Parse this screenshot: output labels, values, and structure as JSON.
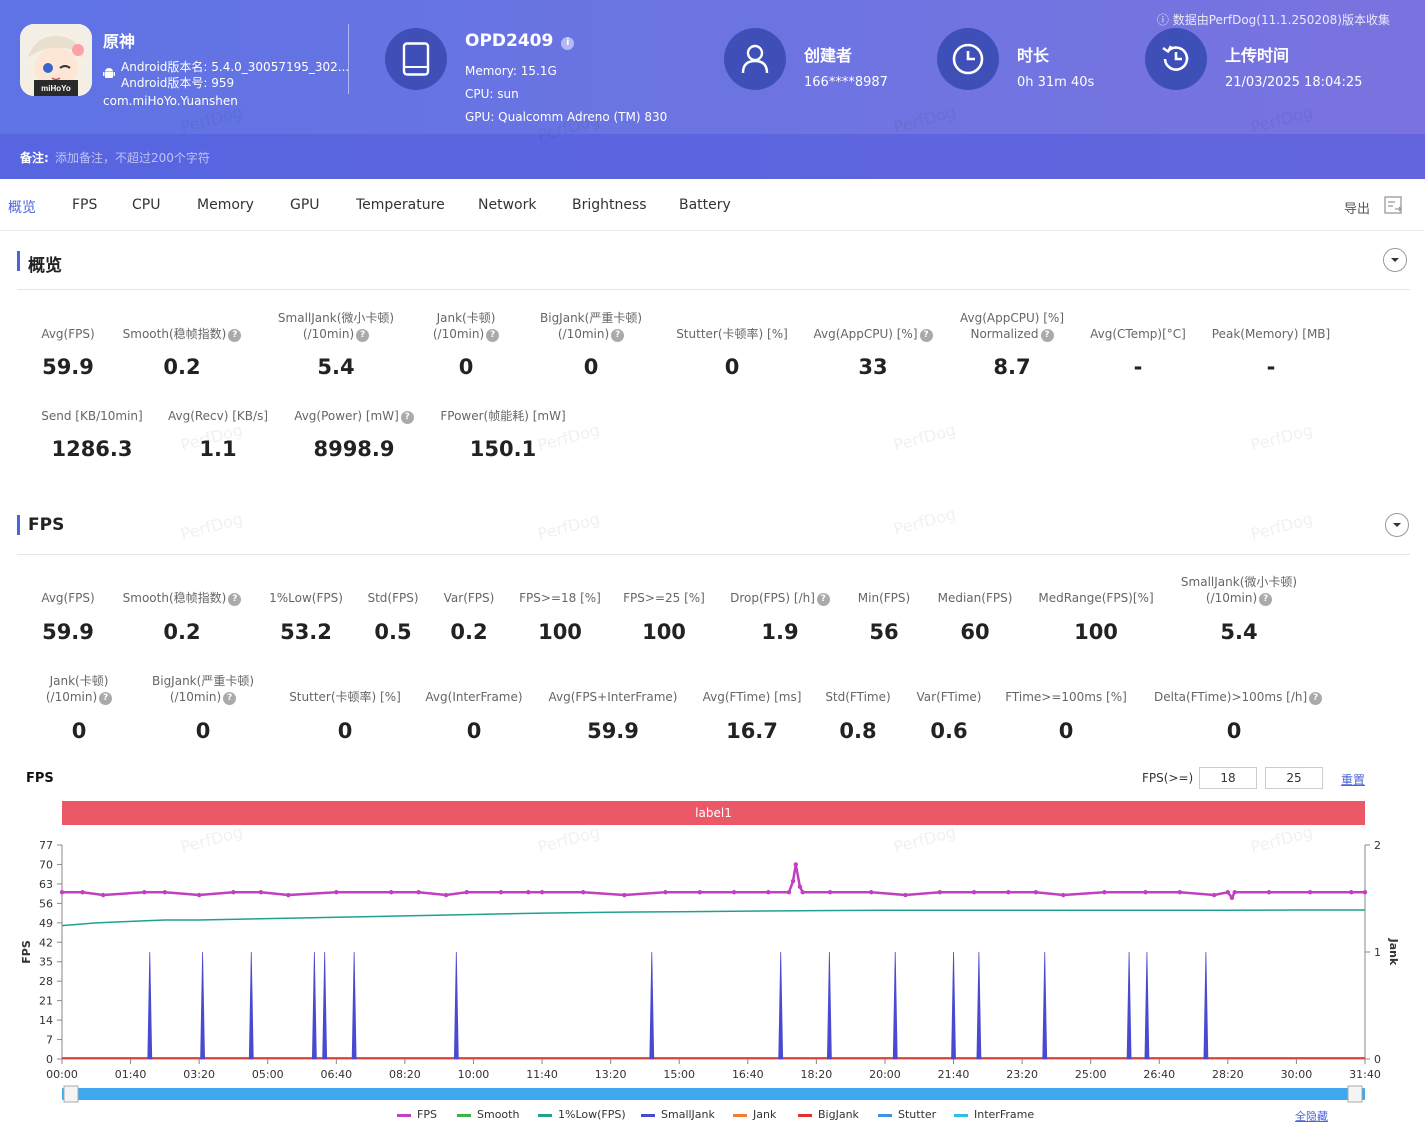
{
  "header": {
    "notice": "数据由PerfDog(11.1.250208)版本收集",
    "app": {
      "name": "原神",
      "version_name": "Android版本名: 5.4.0_30057195_302...",
      "version_code": "Android版本号: 959",
      "package": "com.miHoYo.Yuanshen",
      "icon_text": "miHoYo"
    },
    "device": {
      "name": "OPD2409",
      "memory": "Memory: 15.1G",
      "cpu": "CPU: sun",
      "gpu": "GPU: Qualcomm Adreno (TM) 830"
    },
    "creator": {
      "title": "创建者",
      "value": "166****8987"
    },
    "duration": {
      "title": "时长",
      "value": "0h 31m 40s"
    },
    "upload": {
      "title": "上传时间",
      "value": "21/03/2025 18:04:25"
    },
    "remark": {
      "label": "备注:",
      "placeholder": "添加备注，不超过200个字符"
    }
  },
  "tabs": [
    "概览",
    "FPS",
    "CPU",
    "Memory",
    "GPU",
    "Temperature",
    "Network",
    "Brightness",
    "Battery"
  ],
  "export_label": "导出",
  "overview": {
    "title": "概览",
    "metrics_row1": [
      {
        "l1": "",
        "l2": "Avg(FPS)",
        "v": "59.9",
        "q": false
      },
      {
        "l1": "",
        "l2": "Smooth(稳帧指数)",
        "v": "0.2",
        "q": true
      },
      {
        "l1": "SmallJank(微小卡顿)",
        "l2": "(/10min)",
        "v": "5.4",
        "q": true
      },
      {
        "l1": "Jank(卡顿)",
        "l2": "(/10min)",
        "v": "0",
        "q": true
      },
      {
        "l1": "BigJank(严重卡顿)",
        "l2": "(/10min)",
        "v": "0",
        "q": true
      },
      {
        "l1": "",
        "l2": "Stutter(卡顿率) [%]",
        "v": "0",
        "q": false
      },
      {
        "l1": "",
        "l2": "Avg(AppCPU) [%]",
        "v": "33",
        "q": true
      },
      {
        "l1": "Avg(AppCPU) [%]",
        "l2": "Normalized",
        "v": "8.7",
        "q": true
      },
      {
        "l1": "",
        "l2": "Avg(CTemp)[°C]",
        "v": "-",
        "q": false
      },
      {
        "l1": "",
        "l2": "Peak(Memory) [MB]",
        "v": "-",
        "q": false
      }
    ],
    "metrics_row2": [
      {
        "l1": "",
        "l2": "Send [KB/10min]",
        "v": "1286.3",
        "q": false
      },
      {
        "l1": "",
        "l2": "Avg(Recv) [KB/s]",
        "v": "1.1",
        "q": false
      },
      {
        "l1": "",
        "l2": "Avg(Power) [mW]",
        "v": "8998.9",
        "q": true
      },
      {
        "l1": "",
        "l2": "FPower(帧能耗) [mW]",
        "v": "150.1",
        "q": false
      }
    ]
  },
  "fps": {
    "title": "FPS",
    "metrics_row1": [
      {
        "l1": "",
        "l2": "Avg(FPS)",
        "v": "59.9",
        "q": false
      },
      {
        "l1": "",
        "l2": "Smooth(稳帧指数)",
        "v": "0.2",
        "q": true
      },
      {
        "l1": "",
        "l2": "1%Low(FPS)",
        "v": "53.2",
        "q": false
      },
      {
        "l1": "",
        "l2": "Std(FPS)",
        "v": "0.5",
        "q": false
      },
      {
        "l1": "",
        "l2": "Var(FPS)",
        "v": "0.2",
        "q": false
      },
      {
        "l1": "",
        "l2": "FPS>=18 [%]",
        "v": "100",
        "q": false
      },
      {
        "l1": "",
        "l2": "FPS>=25 [%]",
        "v": "100",
        "q": false
      },
      {
        "l1": "",
        "l2": "Drop(FPS) [/h]",
        "v": "1.9",
        "q": true
      },
      {
        "l1": "",
        "l2": "Min(FPS)",
        "v": "56",
        "q": false
      },
      {
        "l1": "",
        "l2": "Median(FPS)",
        "v": "60",
        "q": false
      },
      {
        "l1": "",
        "l2": "MedRange(FPS)[%]",
        "v": "100",
        "q": false
      },
      {
        "l1": "SmallJank(微小卡顿)",
        "l2": "(/10min)",
        "v": "5.4",
        "q": true
      }
    ],
    "metrics_row2": [
      {
        "l1": "Jank(卡顿)",
        "l2": "(/10min)",
        "v": "0",
        "q": true
      },
      {
        "l1": "BigJank(严重卡顿)",
        "l2": "(/10min)",
        "v": "0",
        "q": true
      },
      {
        "l1": "",
        "l2": "Stutter(卡顿率) [%]",
        "v": "0",
        "q": false
      },
      {
        "l1": "",
        "l2": "Avg(InterFrame)",
        "v": "0",
        "q": false
      },
      {
        "l1": "",
        "l2": "Avg(FPS+InterFrame)",
        "v": "59.9",
        "q": false
      },
      {
        "l1": "",
        "l2": "Avg(FTime) [ms]",
        "v": "16.7",
        "q": false
      },
      {
        "l1": "",
        "l2": "Std(FTime)",
        "v": "0.8",
        "q": false
      },
      {
        "l1": "",
        "l2": "Var(FTime)",
        "v": "0.6",
        "q": false
      },
      {
        "l1": "",
        "l2": "FTime>=100ms [%]",
        "v": "0",
        "q": false
      },
      {
        "l1": "",
        "l2": "Delta(FTime)>100ms [/h]",
        "v": "0",
        "q": true
      }
    ]
  },
  "chart": {
    "title": "FPS",
    "threshold_label": "FPS(>=)",
    "threshold_1": "18",
    "threshold_2": "25",
    "reset_label": "重置",
    "label_bar": "label1",
    "toggle_all": "全隐藏",
    "watermark": "PerfDog",
    "colors": {
      "fps": "#c040c0",
      "smooth": "#3cb44b",
      "low1": "#20a090",
      "smalljank": "#4a4ad0",
      "jank": "#f08030",
      "bigjank": "#e03030",
      "stutter": "#4090f0",
      "interframe": "#30c0e0",
      "label_bar": "#ec5867",
      "accent": "#4b64d9"
    }
  },
  "chart_data": {
    "type": "line",
    "title": "FPS",
    "xlabel": "",
    "ylabel": "FPS",
    "y2label": "Jank",
    "xlim": [
      0,
      1900
    ],
    "ylim": [
      0,
      77
    ],
    "y2lim": [
      0,
      2
    ],
    "yticks": [
      "0",
      "7",
      "14",
      "21",
      "28",
      "35",
      "42",
      "49",
      "56",
      "63",
      "70",
      "77"
    ],
    "y2ticks": [
      "0",
      "1",
      "2"
    ],
    "xticks": [
      "00:00",
      "01:40",
      "03:20",
      "05:00",
      "06:40",
      "08:20",
      "10:00",
      "11:40",
      "13:20",
      "15:00",
      "16:40",
      "18:20",
      "20:00",
      "21:40",
      "23:20",
      "25:00",
      "26:40",
      "28:20",
      "30:00",
      "31:40"
    ],
    "legend": [
      "FPS",
      "Smooth",
      "1%Low(FPS)",
      "SmallJank",
      "Jank",
      "BigJank",
      "Stutter",
      "InterFrame"
    ],
    "series": [
      {
        "name": "FPS",
        "x": [
          0,
          30,
          60,
          120,
          150,
          200,
          250,
          290,
          330,
          400,
          480,
          520,
          560,
          590,
          640,
          680,
          700,
          760,
          820,
          880,
          930,
          980,
          1030,
          1060,
          1066,
          1070,
          1076,
          1080,
          1120,
          1180,
          1230,
          1280,
          1330,
          1380,
          1420,
          1460,
          1520,
          1580,
          1630,
          1680,
          1700,
          1706,
          1710,
          1760,
          1820,
          1880,
          1900
        ],
        "y": [
          60,
          60,
          59,
          60,
          60,
          59,
          60,
          60,
          59,
          60,
          60,
          60,
          59,
          60,
          60,
          60,
          60,
          60,
          59,
          60,
          60,
          60,
          60,
          60,
          64,
          70,
          62,
          60,
          60,
          60,
          59,
          60,
          60,
          60,
          60,
          59,
          60,
          60,
          60,
          59,
          60,
          58,
          60,
          60,
          60,
          60,
          60
        ]
      },
      {
        "name": "1%Low(FPS)",
        "x": [
          0,
          50,
          100,
          150,
          200,
          300,
          400,
          500,
          600,
          700,
          800,
          900,
          1000,
          1100,
          1200,
          1300,
          1400,
          1500,
          1600,
          1700,
          1800,
          1900
        ],
        "y": [
          48,
          49,
          49.5,
          50,
          50,
          50.5,
          51,
          51.5,
          52,
          52.5,
          52.8,
          53,
          53.2,
          53.4,
          53.5,
          53.5,
          53.5,
          53.5,
          53.5,
          53.5,
          53.6,
          53.6
        ]
      },
      {
        "name": "SmallJank",
        "axis": "y2",
        "x": [
          128,
          205,
          276,
          368,
          383,
          426,
          575,
          860,
          1048,
          1119,
          1215,
          1300,
          1337,
          1433,
          1556,
          1582,
          1668
        ],
        "y": [
          1,
          1,
          1,
          1,
          1,
          1,
          1,
          1,
          1,
          1,
          1,
          1,
          1,
          1,
          1,
          1,
          1
        ]
      },
      {
        "name": "Jank",
        "axis": "y2",
        "x": [
          0,
          1900
        ],
        "y": [
          0,
          0
        ]
      },
      {
        "name": "BigJank",
        "axis": "y2",
        "x": [
          0,
          1900
        ],
        "y": [
          0,
          0
        ]
      }
    ]
  }
}
